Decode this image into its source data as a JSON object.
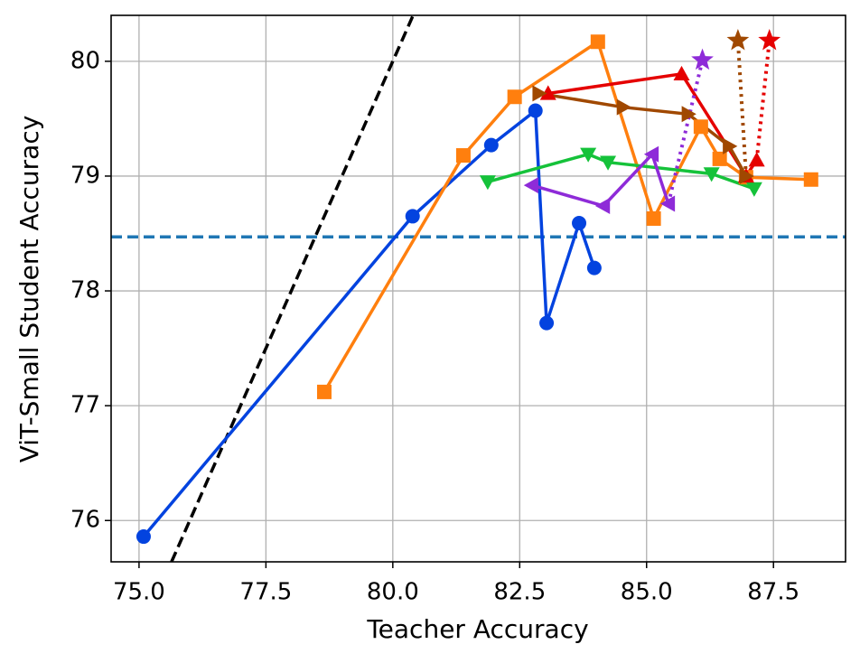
{
  "chart_data": {
    "type": "line",
    "xlabel": "Teacher Accuracy",
    "ylabel": "ViT-Small Student Accuracy",
    "xlim": [
      74.45,
      88.92
    ],
    "ylim": [
      75.64,
      80.4
    ],
    "xticks": [
      {
        "value": 75,
        "label": "75.0"
      },
      77.5,
      {
        "value": 80,
        "label": "80.0"
      },
      82.5,
      {
        "value": 85,
        "label": "85.0"
      },
      87.5
    ],
    "yticks": [
      76,
      77,
      78,
      79,
      80
    ],
    "grid": true,
    "reference_lines": [
      {
        "y": 78.47,
        "color": "#1f77b4",
        "linestyle": "dashed"
      }
    ],
    "series": [
      {
        "color": "#000000",
        "marker": "none",
        "linestyle": "dashed",
        "x": [
          75.64,
          80.4
        ],
        "values": [
          75.64,
          80.4
        ]
      },
      {
        "color": "#0343df",
        "marker": "circle",
        "linestyle": "solid",
        "x": [
          75.09,
          80.39,
          81.94,
          82.81,
          83.03,
          83.67,
          83.97
        ],
        "values": [
          75.86,
          78.65,
          79.27,
          79.57,
          77.72,
          78.59,
          78.2
        ]
      },
      {
        "color": "#ff7f0e",
        "marker": "square",
        "linestyle": "solid",
        "x": [
          78.65,
          81.39,
          82.4,
          84.04,
          85.14,
          86.07,
          86.44,
          86.96,
          88.24
        ],
        "values": [
          77.12,
          79.18,
          79.69,
          80.17,
          78.63,
          79.43,
          79.15,
          78.99,
          78.97
        ]
      },
      {
        "color": "#15c23a",
        "marker": "triangle-down",
        "linestyle": "solid",
        "x": [
          81.87,
          83.85,
          84.24,
          86.28,
          87.12
        ],
        "values": [
          78.95,
          79.19,
          79.12,
          79.02,
          78.89
        ]
      },
      {
        "color": "#e50000",
        "marker": "triangle-up",
        "linestyle": "solid",
        "x": [
          83.06,
          85.69,
          86.96,
          87.17
        ],
        "values": [
          79.72,
          79.89,
          79.0,
          79.14
        ]
      },
      {
        "color": "#a04800",
        "marker": "triangle-right",
        "linestyle": "solid",
        "x": [
          82.88,
          84.54,
          85.82,
          86.63,
          86.96
        ],
        "values": [
          79.72,
          79.6,
          79.54,
          79.26,
          79.0
        ]
      },
      {
        "color": "#8e2bd8",
        "marker": "triangle-left",
        "linestyle": "solid",
        "x": [
          82.74,
          84.15,
          85.11,
          85.43
        ],
        "values": [
          78.92,
          78.74,
          79.19,
          78.76
        ]
      },
      {
        "color": "#8e2bd8",
        "marker": "star",
        "markevery": [
          1
        ],
        "linestyle": "dotted",
        "x": [
          85.43,
          86.1
        ],
        "values": [
          78.76,
          80.01
        ]
      },
      {
        "color": "#a04800",
        "marker": "star",
        "markevery": [
          1
        ],
        "linestyle": "dotted",
        "x": [
          86.96,
          86.8
        ],
        "values": [
          79.0,
          80.18
        ]
      },
      {
        "color": "#e50000",
        "marker": "star",
        "markevery": [
          1
        ],
        "linestyle": "dotted",
        "x": [
          87.17,
          87.42
        ],
        "values": [
          79.14,
          80.18
        ]
      }
    ]
  }
}
